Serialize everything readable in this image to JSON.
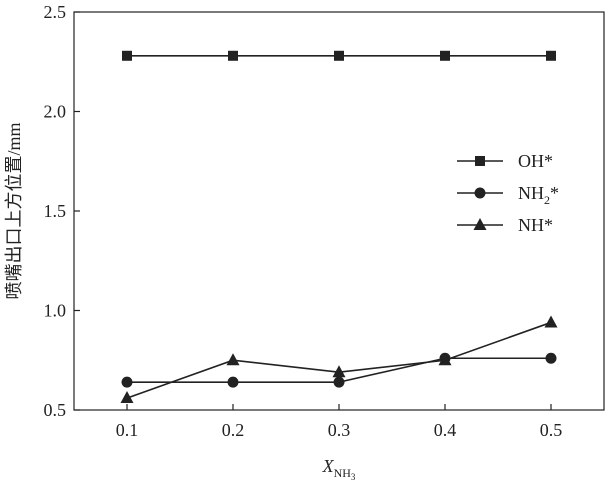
{
  "chart_data": {
    "type": "line",
    "xlabel": {
      "main": "X",
      "sub": "NH",
      "subsub": "3"
    },
    "ylabel": "喷嘴出口上方位置/mm",
    "x": [
      0.1,
      0.2,
      0.3,
      0.4,
      0.5
    ],
    "xlim": [
      0.05,
      0.55
    ],
    "ylim": [
      0.5,
      2.5
    ],
    "xticks": [
      "0.1",
      "0.2",
      "0.3",
      "0.4",
      "0.5"
    ],
    "yticks": [
      "0.5",
      "1.0",
      "1.5",
      "2.0",
      "2.5"
    ],
    "legend_position": "right",
    "grid": false,
    "series": [
      {
        "name": "OH*",
        "label": {
          "main": "OH*",
          "sub": ""
        },
        "marker": "square",
        "values": [
          2.28,
          2.28,
          2.28,
          2.28,
          2.28
        ]
      },
      {
        "name": "NH2*",
        "label": {
          "main": "NH",
          "sub": "2",
          "tail": "*"
        },
        "marker": "circle",
        "values": [
          0.64,
          0.64,
          0.64,
          0.76,
          0.76
        ]
      },
      {
        "name": "NH*",
        "label": {
          "main": "NH*",
          "sub": ""
        },
        "marker": "triangle",
        "values": [
          0.56,
          0.75,
          0.69,
          0.75,
          0.94
        ]
      }
    ]
  }
}
